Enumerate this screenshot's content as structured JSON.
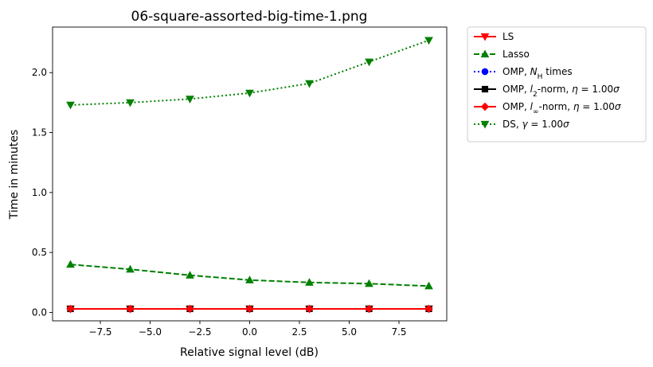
{
  "chart_data": {
    "type": "line",
    "title": "06-square-assorted-big-time-1.png",
    "xlabel": "Relative signal level (dB)",
    "ylabel": "Time in minutes",
    "xlim": [
      -9.9,
      9.9
    ],
    "ylim": [
      -0.07,
      2.38
    ],
    "xticks": [
      -7.5,
      -5.0,
      -2.5,
      0.0,
      2.5,
      5.0,
      7.5
    ],
    "xtick_labels": [
      "−7.5",
      "−5.0",
      "−2.5",
      "0.0",
      "2.5",
      "5.0",
      "7.5"
    ],
    "yticks": [
      0.0,
      0.5,
      1.0,
      1.5,
      2.0
    ],
    "ytick_labels": [
      "0.0",
      "0.5",
      "1.0",
      "1.5",
      "2.0"
    ],
    "grid": false,
    "legend_position": "outside-right-top",
    "x": [
      -9,
      -6,
      -3,
      0,
      3,
      6,
      9
    ],
    "series": [
      {
        "name": "LS",
        "color": "#ff0000",
        "marker": "triangle-down",
        "dash": "solid",
        "values": [
          0.03,
          0.03,
          0.03,
          0.03,
          0.03,
          0.03,
          0.03
        ]
      },
      {
        "name": "Lasso",
        "color": "#008000",
        "marker": "triangle-up",
        "dash": "dashed",
        "values": [
          0.4,
          0.36,
          0.31,
          0.27,
          0.25,
          0.24,
          0.22
        ]
      },
      {
        "name": "OMP, N_H times",
        "color": "#0000ff",
        "marker": "circle",
        "dash": "dotted",
        "values": [
          0.03,
          0.03,
          0.03,
          0.03,
          0.03,
          0.03,
          0.03
        ]
      },
      {
        "name": "OMP, l_2-norm, η = 1.00σ",
        "color": "#000000",
        "marker": "square",
        "dash": "solid",
        "values": [
          0.03,
          0.03,
          0.03,
          0.03,
          0.03,
          0.03,
          0.03
        ]
      },
      {
        "name": "OMP, l_∞-norm, η = 1.00σ",
        "color": "#ff0000",
        "marker": "diamond",
        "dash": "solid",
        "values": [
          0.03,
          0.03,
          0.03,
          0.03,
          0.03,
          0.03,
          0.03
        ]
      },
      {
        "name": "DS, γ = 1.00σ",
        "color": "#008000",
        "marker": "triangle-down",
        "dash": "dotted",
        "values": [
          1.73,
          1.75,
          1.78,
          1.83,
          1.91,
          2.09,
          2.27
        ]
      }
    ],
    "legend": {
      "entries": [
        {
          "parts": [
            [
              "LS",
              ""
            ]
          ]
        },
        {
          "parts": [
            [
              "Lasso",
              ""
            ]
          ]
        },
        {
          "parts": [
            [
              "OMP, ",
              ""
            ],
            [
              "N",
              "it"
            ],
            [
              "H",
              "sub"
            ],
            [
              " times",
              ""
            ]
          ]
        },
        {
          "parts": [
            [
              "OMP, ",
              ""
            ],
            [
              "l",
              "it"
            ],
            [
              "2",
              "sub"
            ],
            [
              "-norm, ",
              ""
            ],
            [
              "η",
              "it"
            ],
            [
              " = 1.00",
              ""
            ],
            [
              "σ",
              "it"
            ]
          ]
        },
        {
          "parts": [
            [
              "OMP, ",
              ""
            ],
            [
              "l",
              "it"
            ],
            [
              "∞",
              "sub"
            ],
            [
              "-norm, ",
              ""
            ],
            [
              "η",
              "it"
            ],
            [
              " = 1.00",
              ""
            ],
            [
              "σ",
              "it"
            ]
          ]
        },
        {
          "parts": [
            [
              "DS, ",
              ""
            ],
            [
              "γ",
              "it"
            ],
            [
              " = 1.00",
              ""
            ],
            [
              "σ",
              "it"
            ]
          ]
        }
      ]
    }
  }
}
